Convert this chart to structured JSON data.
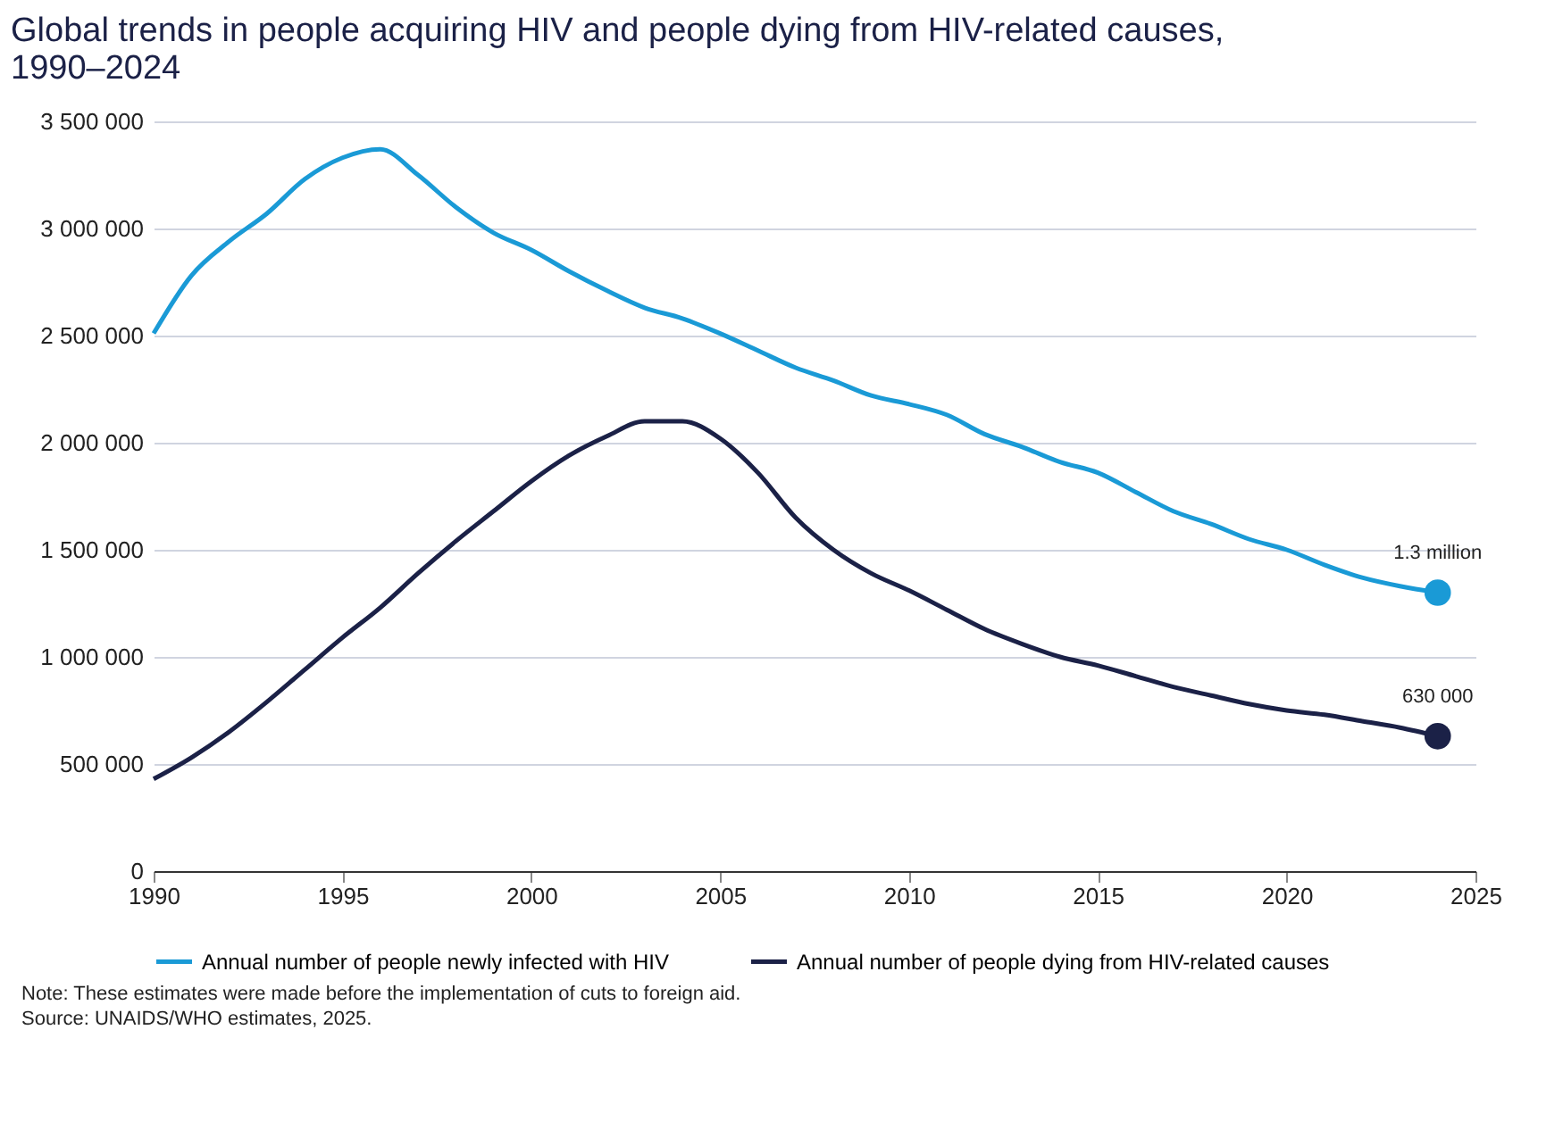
{
  "chart_data": {
    "type": "line",
    "title": "Global trends in people acquiring HIV and people dying from HIV-related causes, 1990–2024",
    "x": [
      1990,
      1991,
      1992,
      1993,
      1994,
      1995,
      1996,
      1997,
      1998,
      1999,
      2000,
      2001,
      2002,
      2003,
      2004,
      2005,
      2006,
      2007,
      2008,
      2009,
      2010,
      2011,
      2012,
      2013,
      2014,
      2015,
      2016,
      2017,
      2018,
      2019,
      2020,
      2021,
      2022,
      2023,
      2024
    ],
    "series": [
      {
        "name": "Annual number of people newly infected with HIV",
        "color": "#1a9ad6",
        "values": [
          2510000,
          2780000,
          2940000,
          3070000,
          3230000,
          3330000,
          3370000,
          3250000,
          3100000,
          2980000,
          2900000,
          2800000,
          2710000,
          2630000,
          2580000,
          2510000,
          2430000,
          2350000,
          2290000,
          2220000,
          2180000,
          2130000,
          2040000,
          1980000,
          1910000,
          1860000,
          1770000,
          1680000,
          1620000,
          1550000,
          1500000,
          1430000,
          1370000,
          1330000,
          1300000
        ]
      },
      {
        "name": "Annual number of people dying from HIV-related causes",
        "color": "#1b2147",
        "values": [
          430000,
          530000,
          650000,
          790000,
          940000,
          1090000,
          1230000,
          1390000,
          1540000,
          1680000,
          1820000,
          1940000,
          2030000,
          2100000,
          2100000,
          2020000,
          1860000,
          1650000,
          1500000,
          1390000,
          1310000,
          1220000,
          1130000,
          1060000,
          1000000,
          960000,
          910000,
          860000,
          820000,
          780000,
          750000,
          730000,
          700000,
          670000,
          630000
        ]
      }
    ],
    "annotations": [
      {
        "text": "1.3 million",
        "x": 2024,
        "y": 1300000
      },
      {
        "text": "630 000",
        "x": 2024,
        "y": 630000
      },
      "Note: These estimates were made before the implementation of cuts to foreign aid.",
      "Source: UNAIDS/WHO estimates, 2025."
    ],
    "xlim": [
      1990,
      2025
    ],
    "xticks": [
      1990,
      1995,
      2000,
      2005,
      2010,
      2015,
      2020,
      2025
    ],
    "ylim": [
      0,
      3500000
    ],
    "yticks": [
      0,
      {
        "value": 500000,
        "label": "500 000"
      },
      {
        "value": 1000000,
        "label": "1 000 000"
      },
      {
        "value": 1500000,
        "label": "1 500 000"
      },
      {
        "value": 2000000,
        "label": "2 000 000"
      },
      {
        "value": 2500000,
        "label": "2 500 000"
      },
      {
        "value": 3000000,
        "label": "3 000 000"
      },
      {
        "value": 3500000,
        "label": "3 500 000"
      }
    ],
    "grid": "y",
    "legend": "bottom"
  }
}
